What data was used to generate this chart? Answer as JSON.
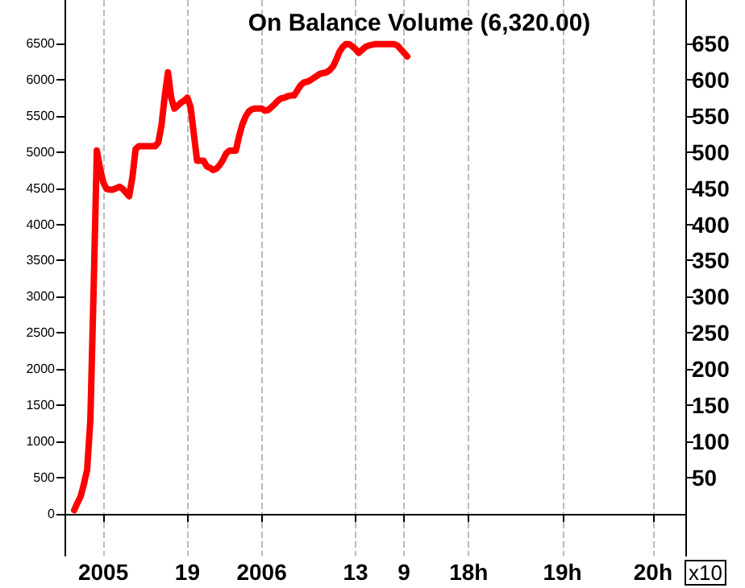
{
  "chart_data": {
    "type": "line",
    "title": "On Balance Volume (6,320.00)",
    "y2label": "x10",
    "categories": [
      null,
      null,
      null,
      null,
      null,
      null,
      null,
      null,
      null,
      null,
      null,
      null,
      "2005",
      null,
      null,
      null,
      null,
      null,
      null,
      null,
      null,
      null,
      null,
      null,
      null,
      null,
      null,
      null,
      null,
      null,
      null,
      null,
      null,
      null,
      null,
      null,
      null,
      null,
      "19",
      null,
      null,
      null,
      null,
      null,
      null,
      null,
      null,
      null,
      null,
      null,
      null,
      null,
      null,
      null,
      null,
      null,
      null,
      null,
      null,
      null,
      null,
      "2006",
      null,
      null,
      null,
      null,
      null,
      null,
      null,
      null,
      null,
      null,
      null,
      null,
      null,
      null,
      null,
      null,
      null,
      null,
      null,
      null,
      null,
      null,
      null,
      null,
      null,
      null,
      null,
      null,
      "13",
      null,
      null,
      null,
      null,
      null,
      null,
      null,
      null,
      null,
      null,
      null,
      null,
      null,
      null,
      "9",
      null,
      null,
      null,
      null,
      null,
      null,
      null,
      null,
      null,
      null,
      null,
      null,
      null,
      null,
      null,
      null,
      null,
      null,
      null,
      "18h",
      null,
      null,
      null,
      null,
      null,
      null,
      null,
      null,
      null,
      null,
      null,
      null,
      null,
      null,
      null,
      null,
      null,
      null,
      null,
      null,
      null,
      null,
      null,
      null,
      null,
      null,
      null,
      null,
      "19h",
      null,
      null,
      null,
      null,
      null,
      null,
      null,
      null,
      null,
      null,
      null,
      null,
      null,
      null,
      null,
      null,
      null,
      null,
      null,
      null,
      null,
      null,
      null,
      null,
      null,
      null,
      null,
      "20h",
      null,
      null,
      null,
      null,
      null,
      null,
      null,
      null,
      null,
      null
    ],
    "series": [
      {
        "color": "#ff0000",
        "values": [
          null,
          null,
          null,
          50,
          150,
          240,
          410,
          610,
          1300,
          3090,
          5020,
          4770,
          4580,
          4490,
          4480,
          4480,
          4500,
          4520,
          4490,
          4440,
          4390,
          4650,
          5040,
          5080,
          5080,
          5080,
          5080,
          5080,
          5080,
          5130,
          5370,
          5770,
          6100,
          5750,
          5600,
          5640,
          5680,
          5710,
          5750,
          5620,
          5250,
          4880,
          4880,
          4880,
          4800,
          4780,
          4750,
          4770,
          4820,
          4890,
          4980,
          5020,
          5020,
          5020,
          5220,
          5380,
          5490,
          5560,
          5590,
          5600,
          5600,
          5600,
          5570,
          5580,
          5620,
          5660,
          5710,
          5740,
          5750,
          5770,
          5780,
          5780,
          5850,
          5920,
          5960,
          5970,
          5990,
          6020,
          6050,
          6080,
          6090,
          6100,
          6130,
          6180,
          6270,
          6380,
          6450,
          6490,
          6490,
          6460,
          6420,
          6370,
          6410,
          6450,
          6470,
          6480,
          6490,
          6490,
          6490,
          6490,
          6490,
          6490,
          6490,
          6470,
          6420,
          6370,
          6320,
          null,
          null,
          null,
          null,
          null,
          null,
          null,
          null,
          null,
          null,
          null,
          null,
          null,
          null,
          null,
          null,
          null,
          null,
          null,
          null,
          null,
          null,
          null,
          null,
          null,
          null,
          null,
          null,
          null,
          null,
          null,
          null,
          null,
          null,
          null,
          null,
          null,
          null,
          null,
          null,
          null,
          null,
          null,
          null,
          null,
          null,
          null,
          null,
          null,
          null,
          null,
          null,
          null,
          null,
          null,
          null,
          null,
          null,
          null,
          null,
          null,
          null,
          null,
          null,
          null,
          null,
          null,
          null,
          null,
          null,
          null,
          null,
          null,
          null,
          null,
          null,
          null,
          null,
          null,
          null,
          null,
          null,
          null,
          null,
          null,
          null
        ]
      }
    ],
    "ylim": [
      -580,
      7100
    ],
    "yticks": [
      0,
      500,
      1000,
      1500,
      2000,
      2500,
      3000,
      3500,
      4000,
      4500,
      5000,
      5500,
      6000,
      6500
    ],
    "y2lim": [
      -58,
      710
    ],
    "y2ticks": [
      50,
      100,
      150,
      200,
      250,
      300,
      350,
      400,
      450,
      500,
      550,
      600,
      650
    ],
    "grid": "x",
    "marker": "none",
    "line_style": "solid"
  }
}
